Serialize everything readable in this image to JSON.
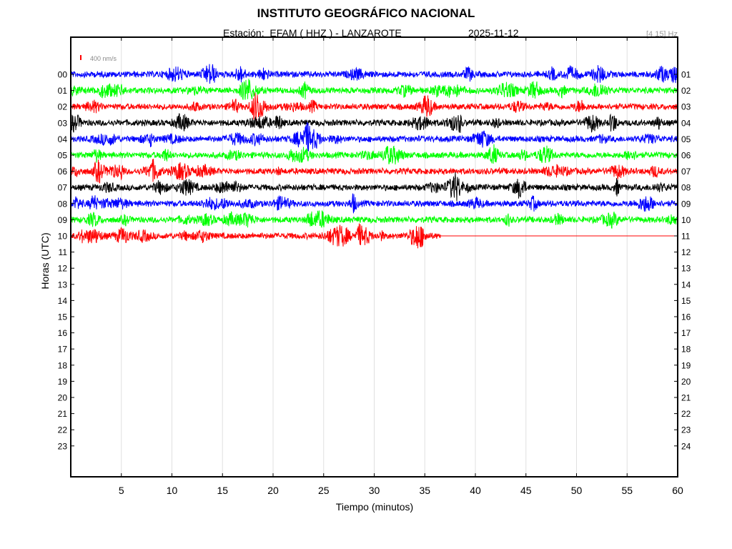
{
  "header": {
    "title": "INSTITUTO GEOGRÁFICO NACIONAL",
    "station": "Estación:  EFAM ( HHZ ) - LANZAROTE",
    "date": "2025-11-12",
    "filter": "[4 15] Hz"
  },
  "scale_label": "400 nm/s",
  "colors": {
    "trace_cycle": [
      "#0000ff",
      "#00ff00",
      "#ff0000",
      "#000000"
    ],
    "scale_bar": "#ff0000",
    "grid": "#e0e0e0"
  },
  "chart_data": {
    "type": "line",
    "title": "INSTITUTO GEOGRÁFICO NACIONAL",
    "xlabel": "Tiempo (minutos)",
    "ylabel": "Horas (UTC)",
    "xlim": [
      0,
      60
    ],
    "xticks": [
      5,
      10,
      15,
      20,
      25,
      30,
      35,
      40,
      45,
      50,
      55,
      60
    ],
    "grid": true,
    "left_labels": [
      "00",
      "01",
      "02",
      "03",
      "04",
      "05",
      "06",
      "07",
      "08",
      "09",
      "10",
      "11",
      "12",
      "13",
      "14",
      "15",
      "16",
      "17",
      "18",
      "19",
      "20",
      "21",
      "22",
      "23"
    ],
    "right_labels": [
      "01",
      "02",
      "03",
      "04",
      "05",
      "06",
      "07",
      "08",
      "09",
      "10",
      "11",
      "12",
      "13",
      "14",
      "15",
      "16",
      "17",
      "18",
      "19",
      "20",
      "21",
      "22",
      "23",
      "24"
    ],
    "traces": [
      {
        "hour": "00",
        "start_min": 0,
        "end_min": 60,
        "recorded_until_min": 60
      },
      {
        "hour": "01",
        "start_min": 0,
        "end_min": 60,
        "recorded_until_min": 60
      },
      {
        "hour": "02",
        "start_min": 0,
        "end_min": 60,
        "recorded_until_min": 60
      },
      {
        "hour": "03",
        "start_min": 0,
        "end_min": 60,
        "recorded_until_min": 60
      },
      {
        "hour": "04",
        "start_min": 0,
        "end_min": 60,
        "recorded_until_min": 60
      },
      {
        "hour": "05",
        "start_min": 0,
        "end_min": 60,
        "recorded_until_min": 60
      },
      {
        "hour": "06",
        "start_min": 0,
        "end_min": 60,
        "recorded_until_min": 60
      },
      {
        "hour": "07",
        "start_min": 0,
        "end_min": 60,
        "recorded_until_min": 60
      },
      {
        "hour": "08",
        "start_min": 0,
        "end_min": 60,
        "recorded_until_min": 60
      },
      {
        "hour": "09",
        "start_min": 0,
        "end_min": 60,
        "recorded_until_min": 60
      },
      {
        "hour": "10",
        "start_min": 0,
        "end_min": 60,
        "recorded_until_min": 36.6
      }
    ]
  }
}
